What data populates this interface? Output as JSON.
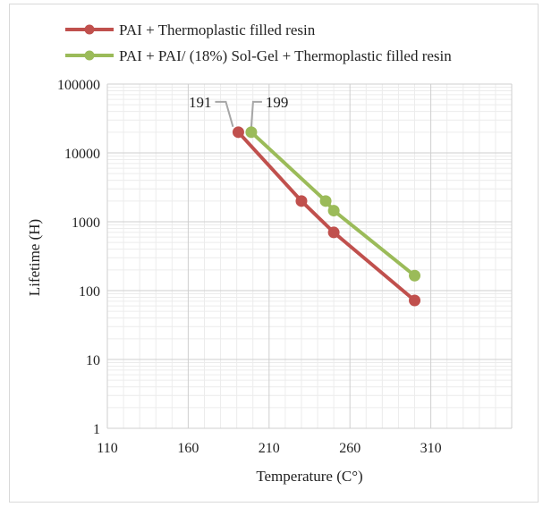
{
  "chart_data": {
    "type": "line",
    "xlabel": "Temperature (C°)",
    "ylabel": "Lifetime  (H)",
    "xlim": [
      110,
      360
    ],
    "x_ticks": [
      110,
      160,
      210,
      260,
      310
    ],
    "ylim": [
      1,
      100000
    ],
    "y_scale": "log",
    "y_ticks": [
      1,
      10,
      100,
      1000,
      10000,
      100000
    ],
    "grid": true,
    "legend_position": "top",
    "series": [
      {
        "name": "PAI + Thermoplastic filled resin",
        "color": "#c0504d",
        "points": [
          [
            191,
            20000
          ],
          [
            230,
            2000
          ],
          [
            250,
            700
          ],
          [
            300,
            72
          ]
        ]
      },
      {
        "name": "PAI + PAI/ (18%) Sol-Gel + Thermoplastic filled resin",
        "color": "#9bbb59",
        "points": [
          [
            199,
            20000
          ],
          [
            245,
            2000
          ],
          [
            250,
            1450
          ],
          [
            300,
            165
          ]
        ]
      }
    ],
    "annotations": [
      {
        "text": "191",
        "series": 0,
        "point": 0
      },
      {
        "text": "199",
        "series": 1,
        "point": 0
      }
    ]
  },
  "legend": [
    {
      "label": "PAI + Thermoplastic filled resin",
      "color": "#c0504d"
    },
    {
      "label": "PAI + PAI/ (18%) Sol-Gel + Thermoplastic filled resin",
      "color": "#9bbb59"
    }
  ]
}
